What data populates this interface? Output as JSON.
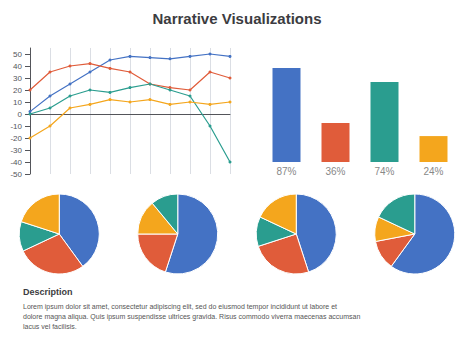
{
  "chart_data": [
    {
      "type": "line",
      "title": "Narrative Visualizations",
      "annotations": [
        "Description",
        "Lorem ipsum dolor sit amet, consectetur adipiscing elit, sed do eiusmod tempor incididunt ut labore et\ndolore magna aliqua. Quis ipsum suspendisse ultrices gravida. Risus commodo viverra maecenas accumsan\nlacus vel facilisis."
      ],
      "x": [
        0,
        1,
        2,
        3,
        4,
        5,
        6,
        7,
        8,
        9,
        10
      ],
      "xlim": [
        0,
        10
      ],
      "xticks": [
        0,
        1,
        2,
        3,
        4,
        5,
        6,
        7,
        8,
        9,
        10
      ],
      "ylim": [
        -50,
        55
      ],
      "yticks": [
        50,
        40,
        30,
        20,
        10,
        0,
        -10,
        -20,
        -30,
        -40,
        -50
      ],
      "grid": true,
      "tick_labels": "y",
      "marker": "circle",
      "series": [
        {
          "color": "#4472c4",
          "values": [
            2,
            15,
            25,
            35,
            45,
            48,
            47,
            46,
            48,
            50,
            48
          ]
        },
        {
          "color": "#e05c3a",
          "values": [
            20,
            35,
            40,
            42,
            38,
            35,
            25,
            22,
            20,
            35,
            30
          ]
        },
        {
          "color": "#2a9d8f",
          "values": [
            0,
            5,
            15,
            20,
            18,
            22,
            25,
            20,
            15,
            -10,
            -40
          ]
        },
        {
          "color": "#f4a61d",
          "values": [
            -20,
            -10,
            5,
            8,
            12,
            10,
            12,
            8,
            10,
            8,
            10
          ]
        }
      ]
    },
    {
      "type": "bar",
      "values": [
        87,
        36,
        74,
        24
      ],
      "value_labels": [
        "87%",
        "36%",
        "74%",
        "24%"
      ],
      "data_labels": true,
      "colors": [
        "#4472c4",
        "#e05c3a",
        "#2a9d8f",
        "#f4a61d"
      ],
      "ylim": [
        0,
        100
      ],
      "tick_labels": false
    },
    {
      "type": "pie",
      "values": [
        40,
        28,
        12,
        20
      ],
      "colors": [
        "#4472c4",
        "#e05c3a",
        "#2a9d8f",
        "#f4a61d"
      ]
    },
    {
      "type": "pie",
      "values": [
        55,
        20,
        14,
        11
      ],
      "colors": [
        "#4472c4",
        "#e05c3a",
        "#f4a61d",
        "#2a9d8f"
      ]
    },
    {
      "type": "pie",
      "values": [
        45,
        25,
        12,
        18
      ],
      "colors": [
        "#4472c4",
        "#e05c3a",
        "#2a9d8f",
        "#f4a61d"
      ]
    },
    {
      "type": "pie",
      "values": [
        60,
        12,
        10,
        18
      ],
      "colors": [
        "#4472c4",
        "#e05c3a",
        "#f4a61d",
        "#2a9d8f"
      ]
    }
  ]
}
